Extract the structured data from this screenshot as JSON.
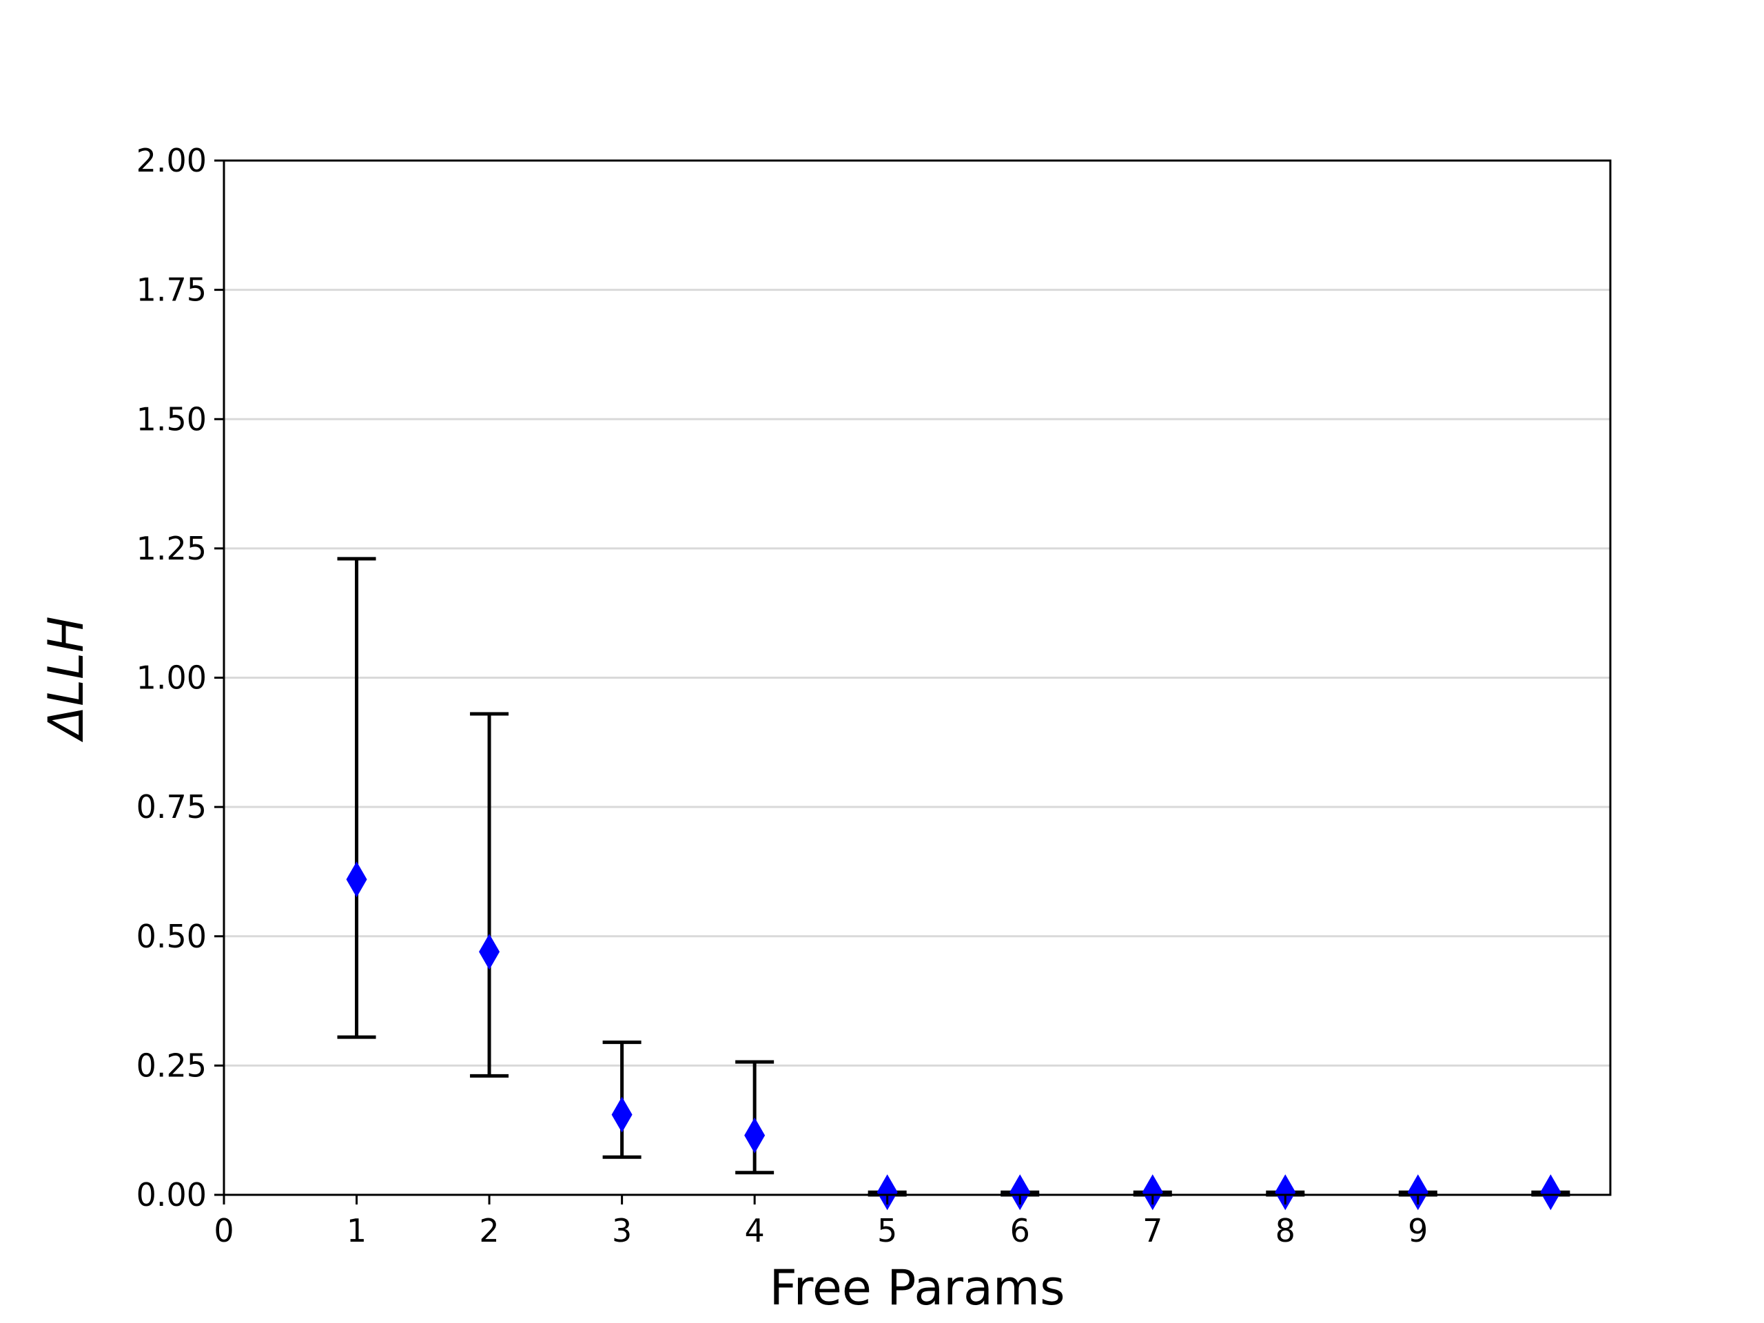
{
  "chart_data": {
    "type": "scatter",
    "title": "",
    "xlabel": "Free Params",
    "ylabel": "ΔLLH",
    "xlim": [
      0,
      10.45
    ],
    "ylim": [
      0,
      2.0
    ],
    "x_ticks": [
      "0",
      "1",
      "2",
      "3",
      "4",
      "5",
      "6",
      "7",
      "8",
      "9"
    ],
    "y_ticks": [
      "0.00",
      "0.25",
      "0.50",
      "0.75",
      "1.00",
      "1.25",
      "1.50",
      "1.75",
      "2.00"
    ],
    "grid": "horizontal",
    "marker": "diamond",
    "marker_color": "#0000ff",
    "errorbar_color": "#000000",
    "grid_color": "#d9d9d9",
    "points": [
      {
        "x": 1,
        "y": 0.61,
        "lower": 0.305,
        "upper": 1.23
      },
      {
        "x": 2,
        "y": 0.47,
        "lower": 0.23,
        "upper": 0.93
      },
      {
        "x": 3,
        "y": 0.155,
        "lower": 0.073,
        "upper": 0.295
      },
      {
        "x": 4,
        "y": 0.115,
        "lower": 0.043,
        "upper": 0.257
      },
      {
        "x": 5,
        "y": 0.005,
        "lower": 0.0,
        "upper": 0.005
      },
      {
        "x": 6,
        "y": 0.005,
        "lower": 0.0,
        "upper": 0.005
      },
      {
        "x": 7,
        "y": 0.005,
        "lower": 0.0,
        "upper": 0.005
      },
      {
        "x": 8,
        "y": 0.005,
        "lower": 0.0,
        "upper": 0.005
      },
      {
        "x": 9,
        "y": 0.005,
        "lower": 0.0,
        "upper": 0.005
      },
      {
        "x": 10,
        "y": 0.005,
        "lower": 0.0,
        "upper": 0.005
      }
    ]
  }
}
